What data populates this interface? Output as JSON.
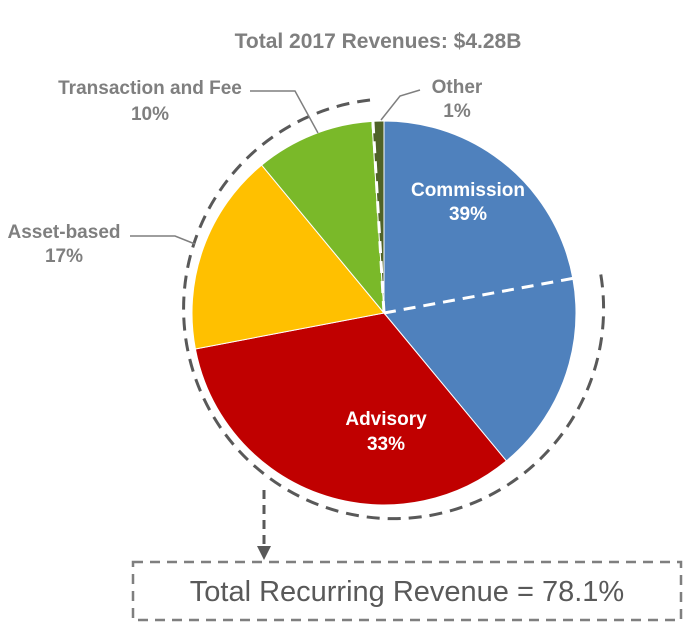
{
  "chart_data": {
    "type": "pie",
    "title": "Total 2017 Revenues: $4.28B",
    "slices": [
      {
        "name": "Commission",
        "label": "Commission",
        "percent_label": "39%",
        "value": 39,
        "color": "#4f81bd"
      },
      {
        "name": "Advisory",
        "label": "Advisory",
        "percent_label": "33%",
        "value": 33,
        "color": "#c00000"
      },
      {
        "name": "Asset-based",
        "label": "Asset-based",
        "percent_label": "17%",
        "value": 17,
        "color": "#ffc000"
      },
      {
        "name": "Transaction and Fee",
        "label": "Transaction and Fee",
        "percent_label": "10%",
        "value": 10,
        "color": "#7ab929"
      },
      {
        "name": "Other",
        "label": "Other",
        "percent_label": "1%",
        "value": 1,
        "color": "#4f6228"
      }
    ],
    "recurring_revenue_text": "Total Recurring Revenue = 78.1%"
  }
}
